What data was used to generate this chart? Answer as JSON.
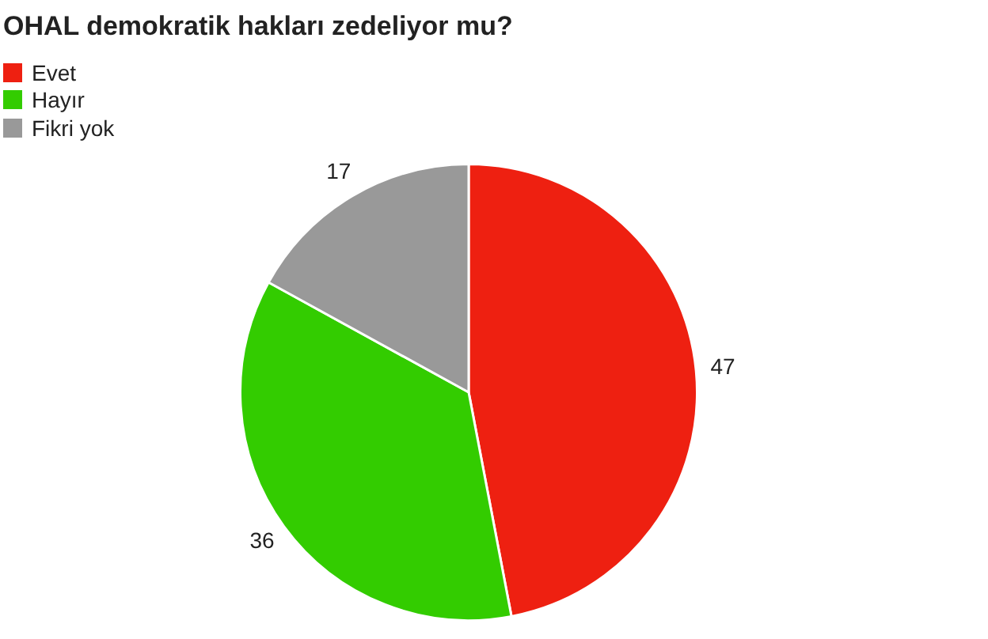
{
  "chart_data": {
    "type": "pie",
    "title": "OHAL demokratik hakları zedeliyor mu?",
    "categories": [
      "Evet",
      "Hayır",
      "Fikri yok"
    ],
    "values": [
      47,
      36,
      17
    ],
    "colors": [
      "#ee2011",
      "#33cc00",
      "#999999"
    ],
    "data_labels": true,
    "legend": "top left"
  }
}
